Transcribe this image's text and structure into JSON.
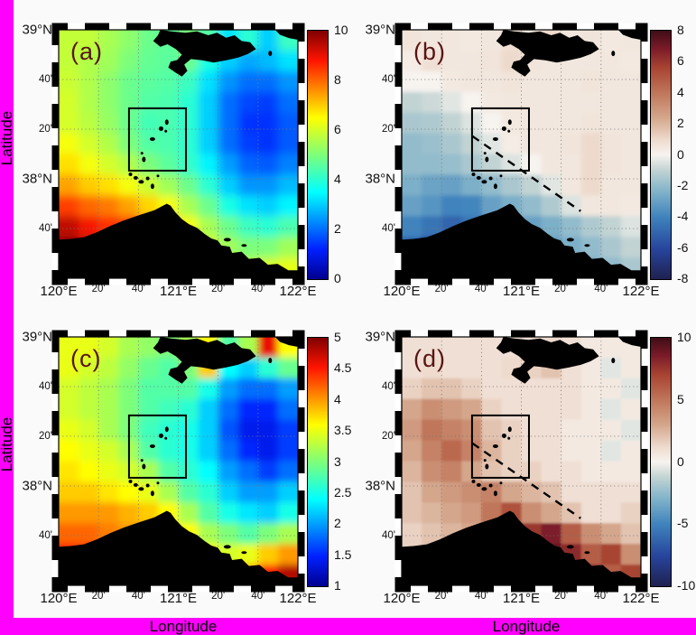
{
  "figure": {
    "background_color": "#fafafa",
    "border_color": "#ff00ff",
    "land_color": "#000000",
    "panel_label_color": "#5a1414"
  },
  "axes": {
    "xlabel": "Longitude",
    "ylabel": "Latitude",
    "x_tick_labels": [
      "120°E",
      "20'",
      "40'",
      "121°E",
      "20'",
      "40'",
      "122°E"
    ],
    "x_tick_types": [
      "major",
      "minor",
      "minor",
      "major",
      "minor",
      "minor",
      "major"
    ],
    "y_tick_labels": [
      "39°N",
      "40'",
      "20'",
      "38°N",
      "40'"
    ],
    "y_tick_types": [
      "major",
      "minor",
      "minor",
      "major",
      "minor"
    ]
  },
  "chart_data": {
    "type": "heatmap",
    "x_axis": {
      "label": "Longitude",
      "range_deg_east": [
        120,
        122
      ],
      "ticks": [
        "120°E",
        "20'",
        "40'",
        "121°E",
        "20'",
        "40'",
        "122°E"
      ]
    },
    "y_axis": {
      "label": "Latitude",
      "range_deg_north": [
        37.33,
        39
      ],
      "ticks": [
        "39°N",
        "40'",
        "20'",
        "38°N",
        "40'"
      ]
    },
    "grid_layout": {
      "rows": 12,
      "cols": 12,
      "order": "rows north to south, cols west to east",
      "values": "approximate, read from colorbar"
    },
    "panels": [
      {
        "id": "a",
        "label": "(a)",
        "position": "top-left",
        "colormap": "jet",
        "vmin": 0,
        "vmax": 10,
        "colorbar_ticks": [
          10,
          8,
          6,
          4,
          2,
          0
        ],
        "colormap_stops": [
          [
            0,
            "#00008f"
          ],
          [
            0.12,
            "#0020ff"
          ],
          [
            0.35,
            "#00ffff"
          ],
          [
            0.5,
            "#7dff7a"
          ],
          [
            0.65,
            "#ffff00"
          ],
          [
            0.88,
            "#ff1400"
          ],
          [
            1,
            "#7f0000"
          ]
        ],
        "has_study_box": true,
        "has_dashed_line": false,
        "smooth": 5,
        "grid": [
          [
            5.8,
            5.8,
            5.5,
            5.2,
            4.8,
            4.6,
            5.0,
            4.5,
            3.2,
            4.0,
            3.0,
            4.2
          ],
          [
            5.8,
            5.6,
            5.4,
            5.0,
            4.7,
            4.6,
            4.8,
            3.8,
            3.0,
            2.6,
            2.8,
            3.2
          ],
          [
            5.9,
            5.6,
            5.2,
            4.8,
            4.6,
            4.5,
            4.2,
            3.2,
            2.4,
            2.0,
            2.0,
            2.4
          ],
          [
            6.0,
            5.6,
            5.2,
            4.8,
            4.5,
            4.4,
            4.0,
            3.0,
            2.0,
            1.6,
            1.5,
            2.0
          ],
          [
            6.0,
            5.7,
            5.3,
            4.8,
            4.3,
            4.4,
            4.0,
            3.0,
            2.0,
            1.4,
            1.4,
            1.8
          ],
          [
            6.4,
            6.0,
            5.6,
            5.0,
            4.5,
            4.4,
            4.0,
            3.0,
            2.0,
            1.5,
            1.4,
            1.8
          ],
          [
            6.8,
            6.4,
            6.0,
            5.6,
            5.0,
            4.6,
            4.1,
            3.4,
            2.5,
            1.9,
            1.8,
            2.2
          ],
          [
            7.4,
            7.0,
            6.8,
            6.4,
            5.9,
            5.4,
            4.8,
            4.0,
            3.0,
            2.4,
            2.4,
            2.8
          ],
          [
            8.4,
            8.0,
            7.8,
            7.4,
            6.9,
            6.4,
            5.5,
            4.8,
            3.8,
            3.2,
            3.0,
            3.4
          ],
          [
            9.4,
            8.9,
            8.5,
            8.4,
            7.9,
            7.4,
            6.4,
            5.5,
            4.8,
            4.2,
            4.0,
            4.4
          ],
          [
            9.9,
            9.4,
            9.0,
            8.9,
            8.4,
            7.9,
            7.0,
            6.0,
            5.4,
            5.0,
            5.0,
            5.4
          ],
          [
            10.0,
            9.9,
            9.4,
            9.0,
            8.9,
            8.4,
            7.4,
            6.4,
            5.9,
            5.6,
            6.0,
            6.2
          ]
        ]
      },
      {
        "id": "b",
        "label": "(b)",
        "position": "top-right",
        "colormap": "balance",
        "vmin": -8,
        "vmax": 8,
        "colorbar_ticks": [
          8,
          6,
          4,
          2,
          0,
          -2,
          -4,
          -6,
          -8
        ],
        "colormap_stops": [
          [
            0,
            "#1f2150"
          ],
          [
            0.12,
            "#27449c"
          ],
          [
            0.25,
            "#3f83bd"
          ],
          [
            0.35,
            "#7fb2c9"
          ],
          [
            0.44,
            "#c3d4d3"
          ],
          [
            0.5,
            "#f7f3ef"
          ],
          [
            0.56,
            "#eedbce"
          ],
          [
            0.65,
            "#d4a68b"
          ],
          [
            0.75,
            "#c0765a"
          ],
          [
            0.85,
            "#a84432"
          ],
          [
            0.93,
            "#7a1a28"
          ],
          [
            1,
            "#3f0d16"
          ]
        ],
        "has_study_box": true,
        "has_dashed_line": true,
        "smooth": 2.5,
        "grid": [
          [
            0.6,
            0.5,
            0.5,
            0.4,
            0.5,
            0.8,
            0.5,
            1.0,
            0.5,
            0.6,
            0.4,
            0.5
          ],
          [
            0.3,
            0.8,
            0.5,
            0.5,
            0.6,
            1.0,
            0.6,
            0.5,
            0.5,
            0.5,
            0.5,
            0.4
          ],
          [
            0.0,
            0.0,
            0.4,
            0.5,
            0.5,
            0.6,
            0.5,
            0.5,
            0.5,
            0.6,
            0.5,
            0.5
          ],
          [
            -1.0,
            -0.8,
            -0.4,
            0.0,
            0.4,
            0.5,
            0.5,
            0.5,
            0.5,
            0.5,
            0.5,
            0.5
          ],
          [
            -1.5,
            -1.4,
            -1.0,
            -0.5,
            0.0,
            0.4,
            0.5,
            0.5,
            0.5,
            0.6,
            0.5,
            0.5
          ],
          [
            -2.0,
            -1.8,
            -1.5,
            -1.0,
            -0.4,
            0.3,
            0.5,
            0.5,
            0.6,
            1.0,
            0.6,
            0.5
          ],
          [
            -2.0,
            -2.0,
            -1.9,
            -1.5,
            -1.0,
            -0.5,
            0.0,
            0.5,
            0.5,
            1.0,
            0.6,
            0.5
          ],
          [
            -2.5,
            -2.9,
            -3.0,
            -2.5,
            -2.0,
            -1.5,
            -1.0,
            -0.4,
            0.5,
            1.0,
            0.5,
            0.5
          ],
          [
            -3.0,
            -3.4,
            -4.0,
            -3.9,
            -3.0,
            -2.5,
            -2.0,
            -1.4,
            -0.5,
            0.5,
            0.5,
            0.4
          ],
          [
            -4.0,
            -4.5,
            -5.0,
            -4.5,
            -4.0,
            -3.5,
            -3.0,
            -2.5,
            -2.0,
            -1.4,
            -1.0,
            -0.5
          ],
          [
            -5.0,
            -6.2,
            -5.5,
            -5.0,
            -4.5,
            -4.0,
            -3.5,
            -3.0,
            -2.5,
            -2.0,
            -1.5,
            -1.0
          ],
          [
            -6.0,
            -7.0,
            -6.0,
            -5.0,
            -4.5,
            -4.0,
            -3.6,
            -3.0,
            -3.0,
            -2.5,
            -2.0,
            -1.5
          ]
        ]
      },
      {
        "id": "c",
        "label": "(c)",
        "position": "bottom-left",
        "colormap": "jet",
        "vmin": 1,
        "vmax": 5,
        "colorbar_ticks": [
          5,
          4.5,
          4,
          3.5,
          3,
          2.5,
          2,
          1.5,
          1
        ],
        "colormap_stops": [
          [
            0,
            "#00008f"
          ],
          [
            0.12,
            "#0020ff"
          ],
          [
            0.35,
            "#00ffff"
          ],
          [
            0.5,
            "#7dff7a"
          ],
          [
            0.65,
            "#ffff00"
          ],
          [
            0.88,
            "#ff1400"
          ],
          [
            1,
            "#7f0000"
          ]
        ],
        "has_study_box": true,
        "has_dashed_line": false,
        "smooth": 4,
        "grid": [
          [
            3.5,
            3.5,
            3.4,
            3.2,
            3.1,
            3.0,
            3.2,
            3.6,
            2.8,
            3.2,
            4.6,
            3.6
          ],
          [
            3.5,
            3.4,
            3.3,
            3.1,
            2.9,
            2.8,
            3.0,
            3.8,
            2.4,
            2.2,
            2.6,
            2.9
          ],
          [
            3.4,
            3.3,
            3.2,
            3.0,
            2.8,
            2.8,
            2.8,
            2.5,
            2.0,
            1.8,
            1.8,
            2.0
          ],
          [
            3.4,
            3.3,
            3.2,
            3.0,
            2.8,
            2.7,
            2.6,
            2.2,
            1.8,
            1.5,
            1.5,
            1.8
          ],
          [
            3.5,
            3.4,
            3.2,
            3.0,
            2.7,
            2.6,
            2.5,
            2.2,
            1.7,
            1.4,
            1.4,
            1.6
          ],
          [
            3.6,
            3.5,
            3.4,
            3.2,
            2.8,
            2.6,
            2.5,
            2.2,
            1.8,
            1.5,
            1.4,
            1.6
          ],
          [
            3.7,
            3.6,
            3.5,
            3.4,
            3.2,
            2.8,
            2.6,
            2.4,
            2.0,
            1.8,
            1.6,
            1.8
          ],
          [
            3.8,
            3.8,
            3.7,
            3.6,
            3.5,
            3.2,
            2.8,
            2.6,
            2.2,
            2.0,
            2.0,
            2.2
          ],
          [
            4.0,
            4.0,
            4.0,
            3.9,
            3.8,
            3.6,
            3.2,
            2.8,
            2.5,
            2.3,
            2.2,
            2.5
          ],
          [
            4.2,
            4.2,
            4.1,
            4.0,
            4.0,
            3.8,
            3.6,
            3.2,
            3.0,
            2.8,
            3.0,
            3.2
          ],
          [
            4.5,
            4.4,
            4.2,
            4.2,
            4.0,
            4.0,
            3.8,
            3.6,
            3.4,
            3.5,
            3.8,
            4.0
          ],
          [
            4.8,
            4.5,
            4.3,
            4.2,
            4.2,
            4.0,
            4.0,
            3.8,
            3.6,
            4.0,
            4.5,
            4.8
          ]
        ]
      },
      {
        "id": "d",
        "label": "(d)",
        "position": "bottom-right",
        "colormap": "balance",
        "vmin": -10,
        "vmax": 10,
        "colorbar_ticks": [
          10,
          5,
          0,
          -5,
          -10
        ],
        "colormap_stops": [
          [
            0,
            "#1f2150"
          ],
          [
            0.12,
            "#27449c"
          ],
          [
            0.25,
            "#3f83bd"
          ],
          [
            0.35,
            "#7fb2c9"
          ],
          [
            0.44,
            "#c3d4d3"
          ],
          [
            0.5,
            "#f7f3ef"
          ],
          [
            0.56,
            "#eedbce"
          ],
          [
            0.65,
            "#d4a68b"
          ],
          [
            0.75,
            "#c0765a"
          ],
          [
            0.85,
            "#a84432"
          ],
          [
            0.93,
            "#7a1a28"
          ],
          [
            1,
            "#3f0d16"
          ]
        ],
        "has_study_box": true,
        "has_dashed_line": true,
        "smooth": 1.2,
        "grid": [
          [
            1.0,
            1.0,
            1.0,
            1.0,
            1.0,
            1.0,
            1.0,
            1.2,
            1.0,
            0.5,
            0.5,
            0.5
          ],
          [
            1.0,
            1.2,
            1.0,
            1.0,
            1.0,
            1.2,
            1.5,
            2.0,
            1.0,
            0.5,
            -0.5,
            0.5
          ],
          [
            1.5,
            2.0,
            2.0,
            1.5,
            1.0,
            1.0,
            1.0,
            1.0,
            1.0,
            0.5,
            0.5,
            -0.5
          ],
          [
            3.0,
            4.0,
            3.5,
            3.0,
            1.5,
            1.0,
            1.0,
            1.0,
            1.0,
            0.5,
            -0.5,
            0.5
          ],
          [
            3.5,
            5.0,
            4.5,
            4.0,
            2.0,
            1.5,
            1.0,
            1.0,
            0.5,
            0.5,
            0.5,
            -0.5
          ],
          [
            3.0,
            4.5,
            5.5,
            4.5,
            2.5,
            1.5,
            1.0,
            1.0,
            0.5,
            0.5,
            -0.5,
            0.5
          ],
          [
            2.5,
            4.0,
            4.5,
            3.0,
            2.0,
            1.5,
            1.5,
            1.0,
            1.0,
            0.5,
            0.5,
            0.5
          ],
          [
            2.0,
            3.0,
            3.5,
            4.0,
            4.5,
            3.0,
            2.5,
            2.0,
            1.0,
            1.0,
            1.0,
            1.0
          ],
          [
            2.0,
            2.5,
            3.0,
            3.5,
            5.0,
            6.5,
            4.0,
            3.0,
            2.0,
            1.0,
            1.0,
            1.5
          ],
          [
            1.5,
            2.0,
            2.5,
            3.0,
            4.0,
            6.0,
            7.5,
            8.5,
            6.0,
            4.0,
            3.0,
            2.0
          ],
          [
            1.5,
            2.0,
            2.0,
            2.5,
            3.5,
            5.0,
            6.5,
            9.0,
            8.0,
            6.0,
            7.0,
            4.0
          ],
          [
            1.0,
            1.5,
            2.0,
            2.0,
            3.0,
            4.0,
            5.0,
            7.0,
            9.0,
            8.0,
            6.0,
            7.0
          ]
        ]
      }
    ]
  }
}
